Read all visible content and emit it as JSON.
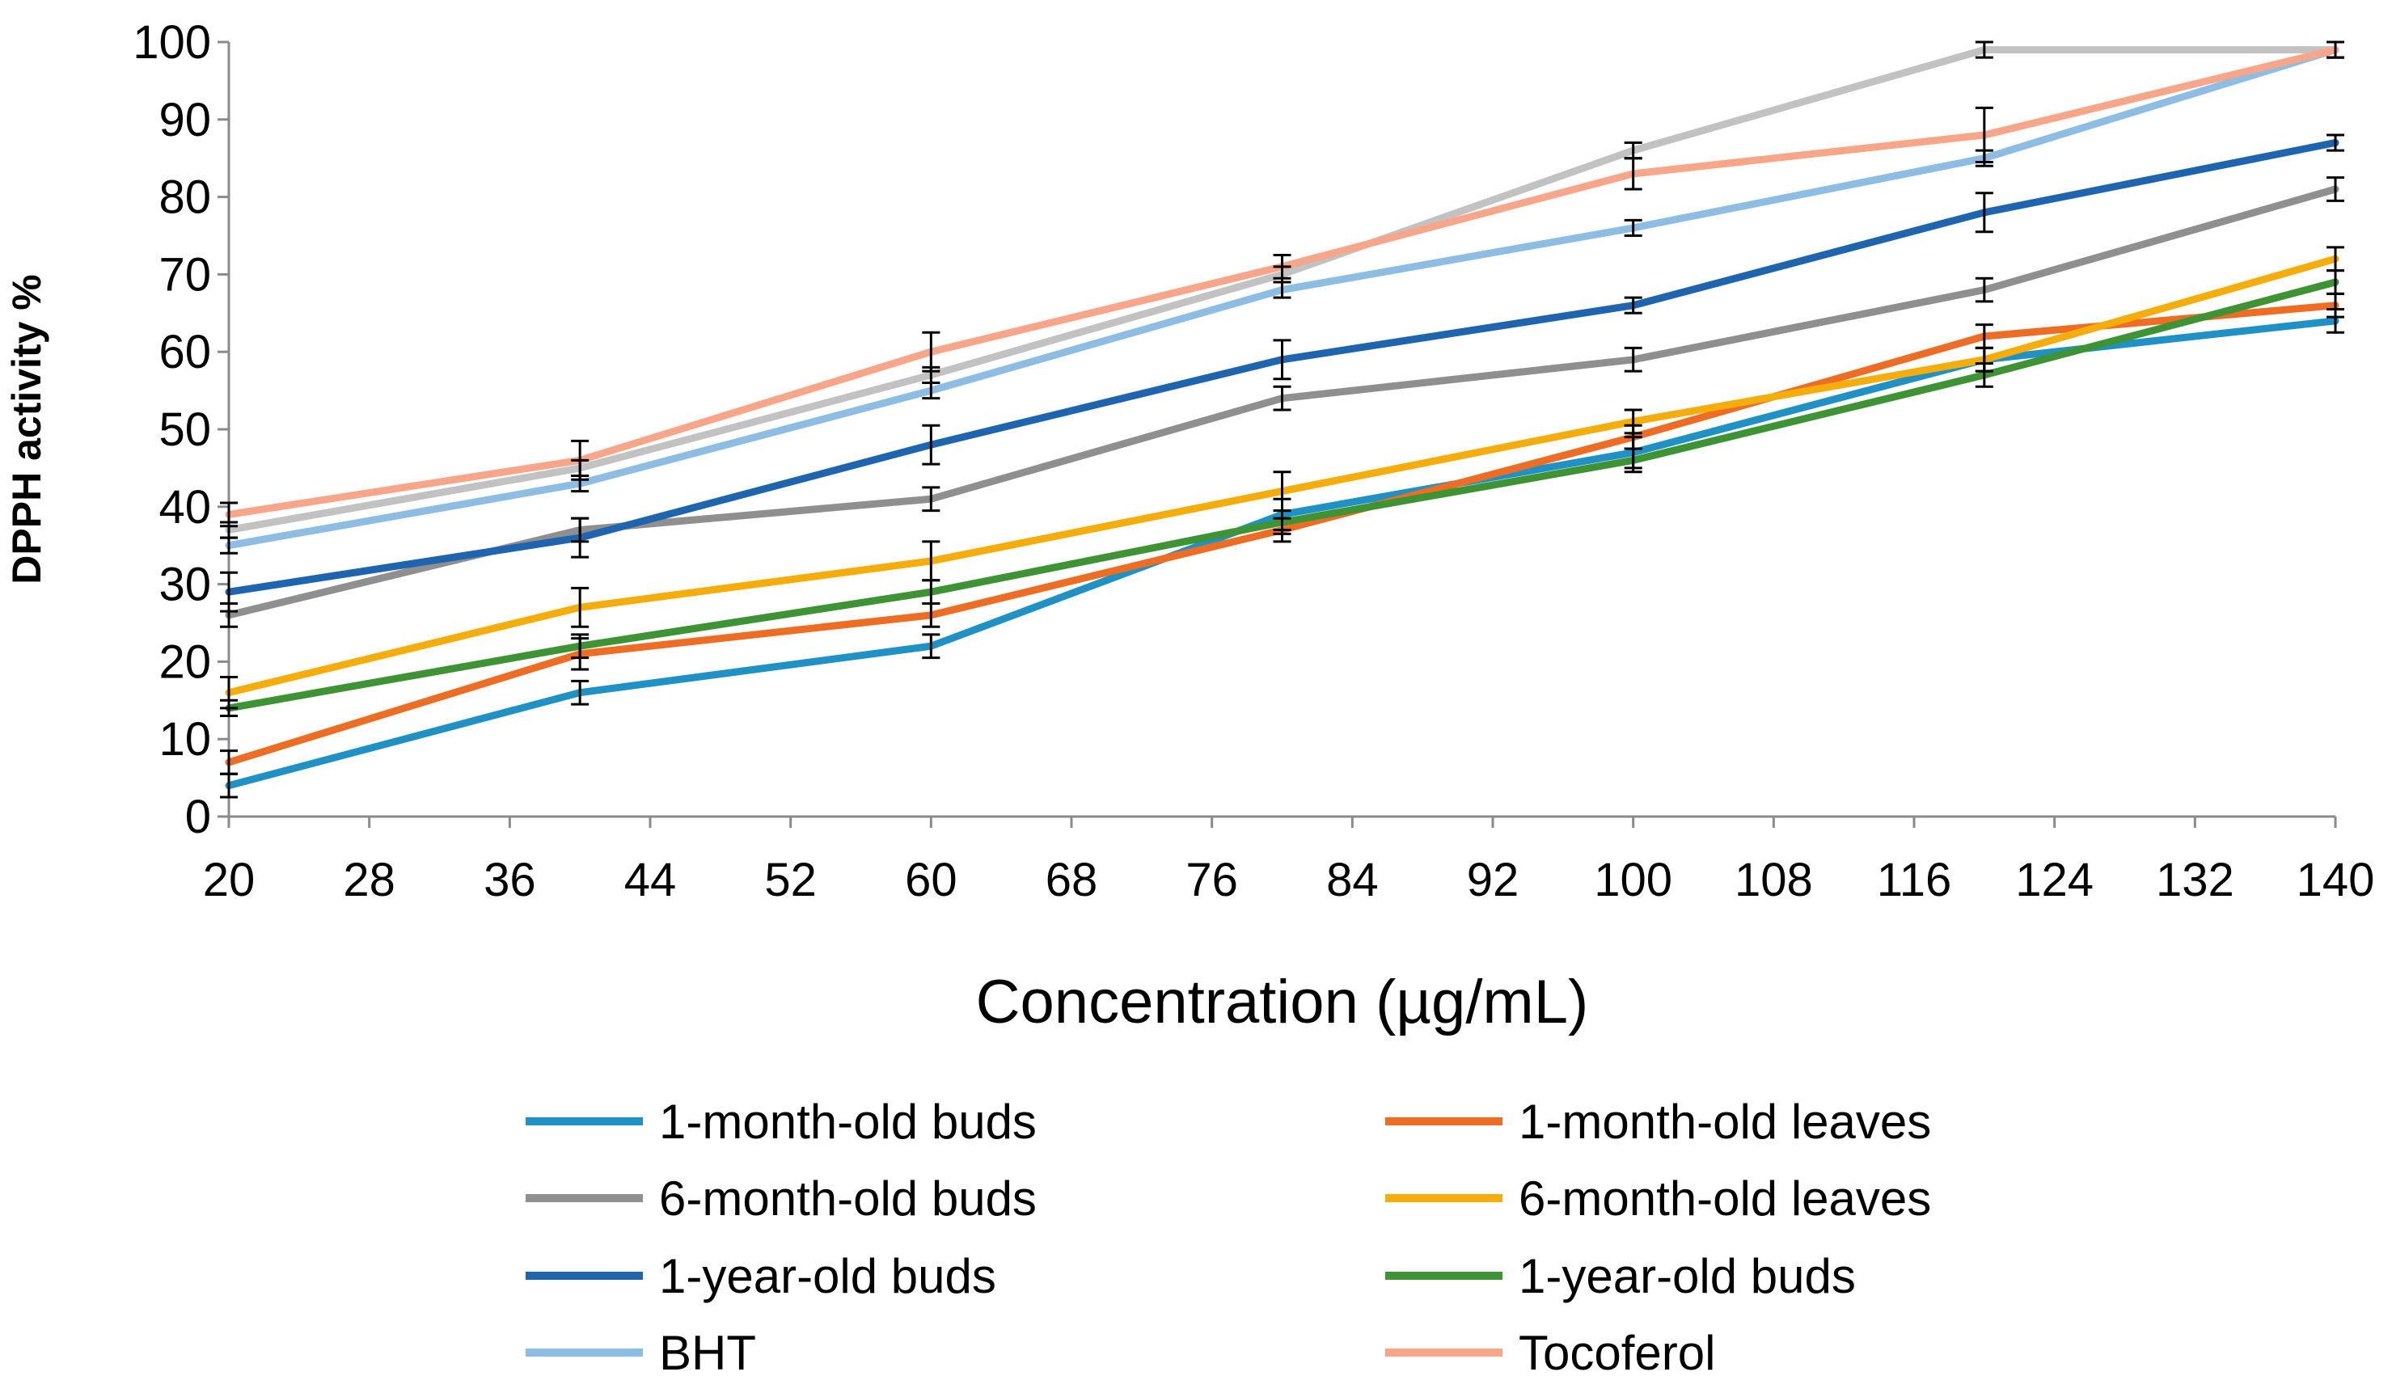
{
  "chart_data": {
    "type": "line",
    "title": "",
    "xlabel": "Concentration (µg/mL)",
    "ylabel": "DPPH activity %",
    "xlim": [
      20,
      140
    ],
    "ylim": [
      0,
      100
    ],
    "x_ticks": [
      20,
      28,
      36,
      44,
      52,
      60,
      68,
      76,
      84,
      92,
      100,
      108,
      116,
      124,
      132,
      140
    ],
    "y_ticks": [
      0,
      10,
      20,
      30,
      40,
      50,
      60,
      70,
      80,
      90,
      100
    ],
    "grid": false,
    "legend_position": "bottom",
    "x": [
      20,
      40,
      60,
      80,
      100,
      120,
      140
    ],
    "series": [
      {
        "name": "1-month-old buds",
        "color": "#1f91c4",
        "values": [
          4,
          16,
          22,
          39,
          47,
          59,
          64
        ],
        "errors": [
          1.5,
          1.5,
          1.5,
          2,
          2,
          1.5,
          1.5
        ]
      },
      {
        "name": "1-month-old leaves",
        "color": "#ed6d24",
        "values": [
          7,
          21,
          26,
          37,
          49,
          62,
          66
        ],
        "errors": [
          1.5,
          2,
          1.5,
          1.5,
          1.5,
          1.5,
          1.5
        ]
      },
      {
        "name": "6-month-old buds",
        "color": "#8f8f8f",
        "values": [
          26,
          37,
          41,
          54,
          59,
          68,
          81
        ],
        "errors": [
          1.5,
          1.5,
          1.5,
          1.5,
          1.5,
          1.5,
          1.5
        ]
      },
      {
        "name": "6-month-old leaves",
        "color": "#f4ad0a",
        "values": [
          16,
          27,
          33,
          42,
          51,
          59,
          72
        ],
        "errors": [
          2,
          2.5,
          2.5,
          2.5,
          1.5,
          1.5,
          1.5
        ]
      },
      {
        "name": "1-year-old buds",
        "color": "#1f64ae",
        "values": [
          29,
          36,
          48,
          59,
          66,
          78,
          87
        ],
        "errors": [
          2.5,
          2.5,
          2.5,
          2.5,
          1,
          2.5,
          1
        ]
      },
      {
        "name": "1-year-old buds",
        "color": "#3e9435",
        "values": [
          14,
          22,
          29,
          38,
          46,
          57,
          69
        ],
        "errors": [
          1,
          1.5,
          1.5,
          1.5,
          1.5,
          1.5,
          1.5
        ]
      },
      {
        "name": "BHT",
        "color": "#8dbde3",
        "values": [
          35,
          43,
          55,
          68,
          76,
          85,
          99
        ],
        "errors": [
          1,
          1,
          1,
          1,
          1,
          1,
          1
        ]
      },
      {
        "name": "Tocoferol",
        "color": "#f8a68a",
        "values": [
          39,
          46,
          60,
          71,
          83,
          88,
          99
        ],
        "errors": [
          1.5,
          2.5,
          2.5,
          1.5,
          2,
          3.5,
          1
        ]
      },
      {
        "name": "",
        "color": "#c2c2c2",
        "values": [
          37,
          45,
          57,
          70,
          86,
          99,
          99
        ],
        "errors": [
          1,
          1,
          1,
          1,
          1,
          1,
          1
        ]
      }
    ]
  }
}
